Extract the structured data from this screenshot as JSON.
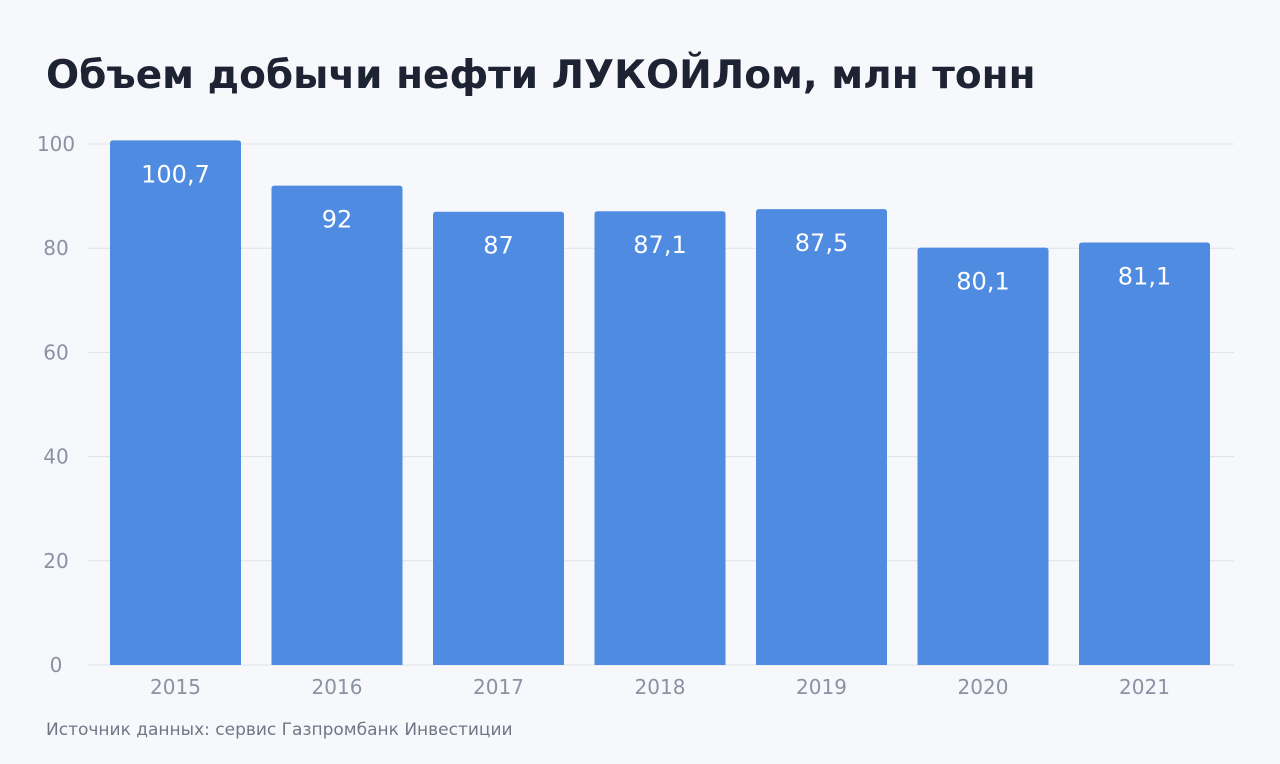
{
  "chart_data": {
    "type": "bar",
    "title": "Объем добычи нефти ЛУКОЙЛом, млн тонн",
    "categories": [
      "2015",
      "2016",
      "2017",
      "2018",
      "2019",
      "2020",
      "2021"
    ],
    "values": [
      100.7,
      92,
      87,
      87.1,
      87.5,
      80.1,
      81.1
    ],
    "data_labels": [
      "100,7",
      "92",
      "87",
      "87,1",
      "87,5",
      "80,1",
      "81,1"
    ],
    "y_ticks": [
      0,
      20,
      40,
      60,
      80,
      100
    ],
    "ylim": [
      0,
      100
    ],
    "grid": true,
    "legend": "none",
    "bar_color": "#4f8be0",
    "xlabel": "",
    "ylabel": ""
  },
  "source": "Источник данных: сервис Газпромбанк Инвестиции"
}
